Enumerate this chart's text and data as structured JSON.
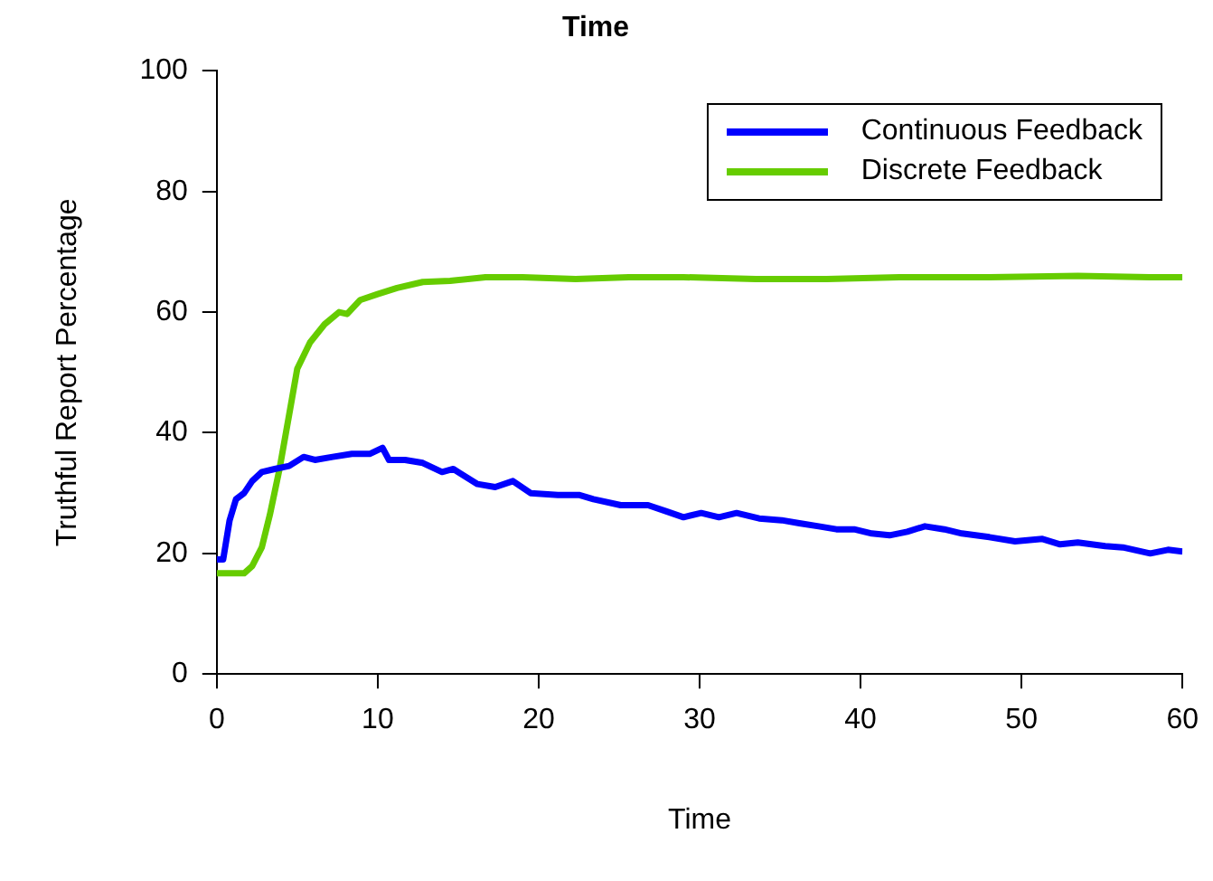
{
  "chart_data": {
    "type": "line",
    "title": "Time",
    "xlabel": "Time",
    "ylabel": "Truthful Report Percentage",
    "xlim": [
      0,
      60
    ],
    "xticks": [
      0,
      10,
      20,
      30,
      40,
      50,
      60
    ],
    "ylim": [
      0,
      100
    ],
    "yticks": [
      0,
      20,
      40,
      60,
      80,
      100
    ],
    "grid": false,
    "legend": "top right",
    "marker": "none",
    "line_style": "solid",
    "series": [
      {
        "name": "Continuous Feedback",
        "color": "#0000ff",
        "x": [
          0,
          0.4,
          0.8,
          1.2,
          1.7,
          2.2,
          2.8,
          3.6,
          4.5,
          5.4,
          6.1,
          7.2,
          8.4,
          9.5,
          10.3,
          10.7,
          11.7,
          12.8,
          14,
          14.7,
          16.2,
          17.3,
          18.4,
          19.5,
          21.2,
          22.5,
          23.4,
          25.1,
          26.8,
          27.9,
          29,
          30.1,
          31.2,
          32.3,
          33.7,
          35.1,
          36.2,
          37.4,
          38.5,
          39.6,
          40.7,
          41.8,
          42.9,
          44,
          45.2,
          46.3,
          48,
          49.6,
          51.3,
          52.4,
          53.5,
          55.2,
          56.3,
          58,
          59.1,
          60
        ],
        "values": [
          19,
          19,
          25.5,
          29,
          30,
          32,
          33.5,
          34,
          34.5,
          36,
          35.5,
          36,
          36.5,
          36.5,
          37.5,
          35.5,
          35.5,
          35,
          33.5,
          34,
          31.5,
          31,
          32,
          30,
          29.7,
          29.7,
          29,
          28,
          28,
          27,
          26,
          26.7,
          26,
          26.7,
          25.8,
          25.5,
          25,
          24.5,
          24,
          24,
          23.3,
          23,
          23.6,
          24.5,
          24,
          23.3,
          22.7,
          22,
          22.4,
          21.5,
          21.8,
          21.2,
          21,
          20,
          20.6,
          20.3
        ]
      },
      {
        "name": "Discrete Feedback",
        "color": "#66cc00",
        "x": [
          0,
          1.7,
          2.2,
          2.8,
          3.3,
          3.9,
          4.5,
          5,
          5.8,
          6.7,
          7.6,
          8.1,
          8.9,
          10,
          11.2,
          12.8,
          14.5,
          16.7,
          19,
          22.3,
          25.6,
          29,
          33.5,
          37.9,
          42.4,
          48,
          53.5,
          58,
          60
        ],
        "values": [
          16.7,
          16.7,
          17.9,
          21,
          26.4,
          34,
          43,
          50.6,
          55,
          58,
          60,
          59.7,
          62,
          63,
          64,
          65,
          65.2,
          65.8,
          65.8,
          65.5,
          65.8,
          65.8,
          65.5,
          65.5,
          65.8,
          65.8,
          66,
          65.8,
          65.8
        ]
      }
    ]
  }
}
